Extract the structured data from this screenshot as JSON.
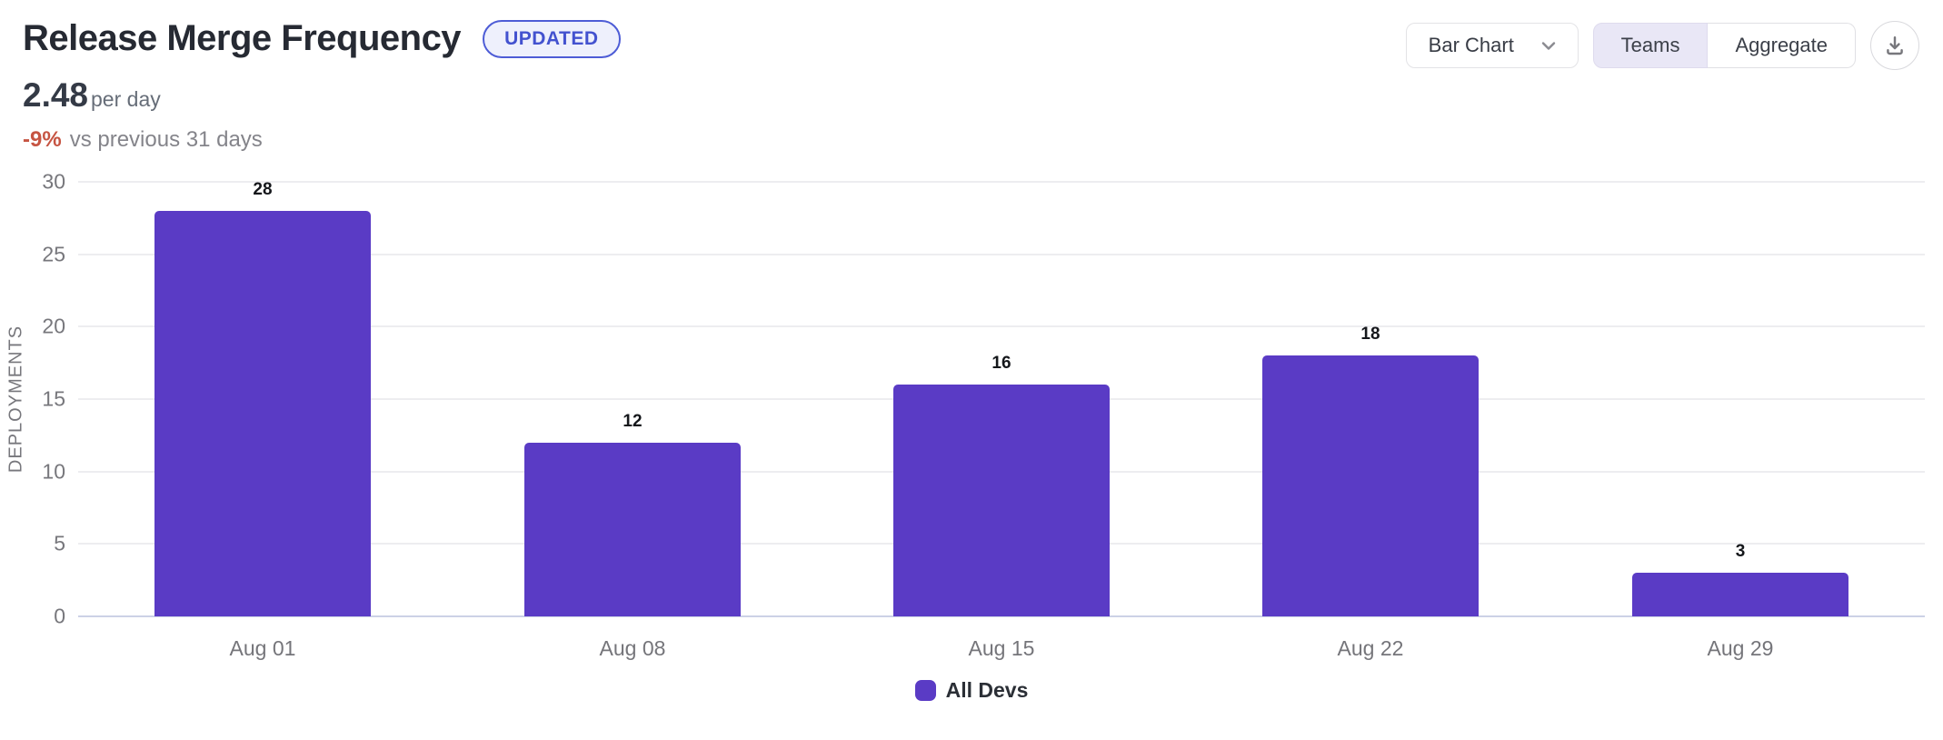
{
  "header": {
    "title": "Release Merge Frequency",
    "badge_label": "UPDATED",
    "stat_value": "2.48",
    "stat_unit": "per day",
    "delta_value": "-9%",
    "delta_context": "vs previous 31 days"
  },
  "controls": {
    "chart_type_selected": "Bar Chart",
    "view_toggle": {
      "options": [
        "Teams",
        "Aggregate"
      ],
      "selected": "Teams"
    }
  },
  "colors": {
    "bar": "#5a3bc5",
    "delta_negative": "#c65442",
    "badge_accent": "#4352cf",
    "toggle_selected_bg": "#e9e7f6",
    "gridline": "#ededf0",
    "axis_baseline": "#ccd1e6"
  },
  "chart_data": {
    "type": "bar",
    "categories": [
      "Aug 01",
      "Aug 08",
      "Aug 15",
      "Aug 22",
      "Aug 29"
    ],
    "series": [
      {
        "name": "All Devs",
        "color": "#5a3bc5",
        "values": [
          28,
          12,
          16,
          18,
          3
        ]
      }
    ],
    "title": "Release Merge Frequency",
    "xlabel": "",
    "ylabel": "DEPLOYMENTS",
    "ylim": [
      0,
      30
    ],
    "yticks": [
      0,
      5,
      10,
      15,
      20,
      25,
      30
    ],
    "grid": true,
    "legend_position": "bottom",
    "value_labels": true
  }
}
